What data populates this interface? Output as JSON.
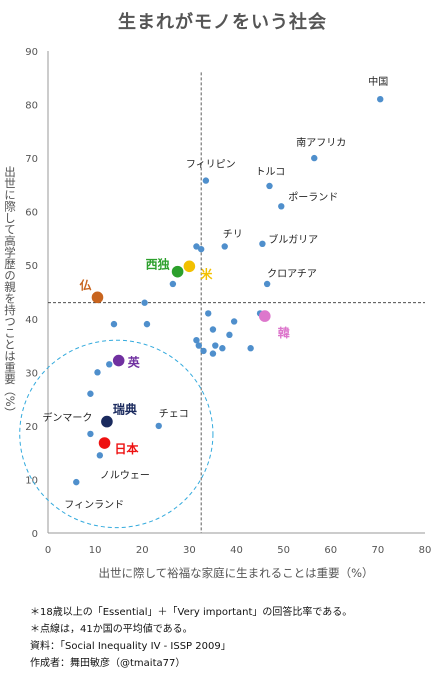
{
  "chart_data": {
    "type": "scatter",
    "title": "生まれがモノをいう社会",
    "xlabel": "出世に際して裕福な家庭に生まれることは重要（%）",
    "ylabel": "出世に際して高学歴の親を持つことは重要（%）",
    "xlim": [
      0,
      80
    ],
    "ylim": [
      0,
      90
    ],
    "xticks": [
      0,
      10,
      20,
      30,
      40,
      50,
      60,
      70,
      80
    ],
    "yticks": [
      0,
      10,
      20,
      30,
      40,
      50,
      60,
      70,
      80,
      90
    ],
    "grid": false,
    "mean_lines": {
      "x": 32.5,
      "y": 43
    },
    "labeled_points": [
      {
        "label": "中国",
        "x": 70.5,
        "y": 81
      },
      {
        "label": "南アフリカ",
        "x": 56.5,
        "y": 70
      },
      {
        "label": "フィリピン",
        "x": 33.5,
        "y": 65.8
      },
      {
        "label": "トルコ",
        "x": 47,
        "y": 64.8
      },
      {
        "label": "ポーランド",
        "x": 49.5,
        "y": 61
      },
      {
        "label": "チリ",
        "x": 37.5,
        "y": 53.5
      },
      {
        "label": "ブルガリア",
        "x": 45.5,
        "y": 54
      },
      {
        "label": "西独",
        "x": 27.5,
        "y": 48.8,
        "color": "#2ca02c",
        "size": "large"
      },
      {
        "label": "米",
        "x": 30,
        "y": 49.8,
        "color": "#f2c000",
        "size": "large"
      },
      {
        "label": "クロアチア",
        "x": 46.5,
        "y": 46.5
      },
      {
        "label": "仏",
        "x": 10.5,
        "y": 44,
        "color": "#c8641e",
        "size": "large"
      },
      {
        "label": "韓",
        "x": 46,
        "y": 40.5,
        "color": "#dd77cc",
        "size": "large"
      },
      {
        "label": "英",
        "x": 15,
        "y": 32.2,
        "color": "#7030a0",
        "size": "large"
      },
      {
        "label": "瑞典",
        "x": 12.5,
        "y": 20.8,
        "color": "#1a2a5e",
        "size": "large"
      },
      {
        "label": "日本",
        "x": 12,
        "y": 16.8,
        "color": "#ee1111",
        "size": "large"
      },
      {
        "label": "デンマーク",
        "x": 9,
        "y": 18.5
      },
      {
        "label": "チェコ",
        "x": 23.5,
        "y": 20
      },
      {
        "label": "ノルウェー",
        "x": 11,
        "y": 14.5
      },
      {
        "label": "フィンランド",
        "x": 6,
        "y": 9.5
      }
    ],
    "unlabeled_points": [
      {
        "x": 31.5,
        "y": 53.5
      },
      {
        "x": 32.5,
        "y": 53
      },
      {
        "x": 26.5,
        "y": 46.5
      },
      {
        "x": 20.5,
        "y": 43
      },
      {
        "x": 21,
        "y": 39
      },
      {
        "x": 14,
        "y": 39
      },
      {
        "x": 34,
        "y": 41
      },
      {
        "x": 35,
        "y": 38
      },
      {
        "x": 38.5,
        "y": 37
      },
      {
        "x": 39.5,
        "y": 39.5
      },
      {
        "x": 45,
        "y": 41
      },
      {
        "x": 31.5,
        "y": 36
      },
      {
        "x": 32,
        "y": 35
      },
      {
        "x": 33,
        "y": 34
      },
      {
        "x": 35,
        "y": 33.5
      },
      {
        "x": 35.5,
        "y": 35
      },
      {
        "x": 37,
        "y": 34.5
      },
      {
        "x": 43,
        "y": 34.5
      },
      {
        "x": 13,
        "y": 31.5
      },
      {
        "x": 10.5,
        "y": 30
      },
      {
        "x": 9,
        "y": 26
      }
    ],
    "annotation_ellipse": {
      "cx": 14.5,
      "cy": 18.5,
      "rx": 20.5,
      "ry": 17.5,
      "style": "dashed",
      "color": "#33aadd"
    },
    "point_color": "#4f8fcc"
  },
  "notes": [
    "＊18歳以上の「Essential」＋「Very important」の回答比率である。",
    "＊点線は，41か国の平均値である。",
    "資料：「Social Inequality IV - ISSP 2009」",
    "作成者：舞田敏彦（@tmaita77）"
  ]
}
